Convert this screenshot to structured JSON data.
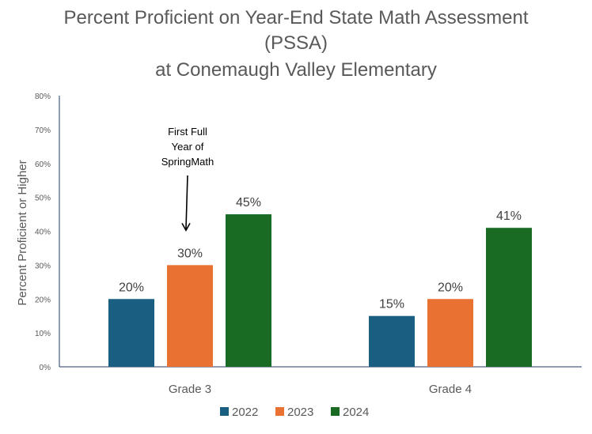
{
  "chart_data": {
    "type": "bar",
    "title_lines": [
      "Percent Proficient on Year-End State Math Assessment",
      "(PSSA)",
      "at Conemaugh Valley Elementary"
    ],
    "xlabel": "",
    "ylabel": "Percent Proficient or Higher",
    "ylim": [
      0,
      80
    ],
    "yticks": [
      "0%",
      "10%",
      "20%",
      "30%",
      "40%",
      "50%",
      "60%",
      "70%",
      "80%"
    ],
    "categories": [
      "Grade 3",
      "Grade 4"
    ],
    "series": [
      {
        "name": "2022",
        "color": "#1a5e82",
        "values": [
          20,
          15
        ],
        "labels": [
          "20%",
          "15%"
        ]
      },
      {
        "name": "2023",
        "color": "#e97132",
        "values": [
          30,
          20
        ],
        "labels": [
          "30%",
          "20%"
        ]
      },
      {
        "name": "2024",
        "color": "#196b24",
        "values": [
          45,
          41
        ],
        "labels": [
          "45%",
          "41%"
        ]
      }
    ],
    "legend_position": "bottom",
    "grid": false,
    "annotation": {
      "lines": [
        "First Full",
        "Year of",
        "SpringMath"
      ],
      "points_to": {
        "category": "Grade 3",
        "series": "2023"
      }
    }
  }
}
